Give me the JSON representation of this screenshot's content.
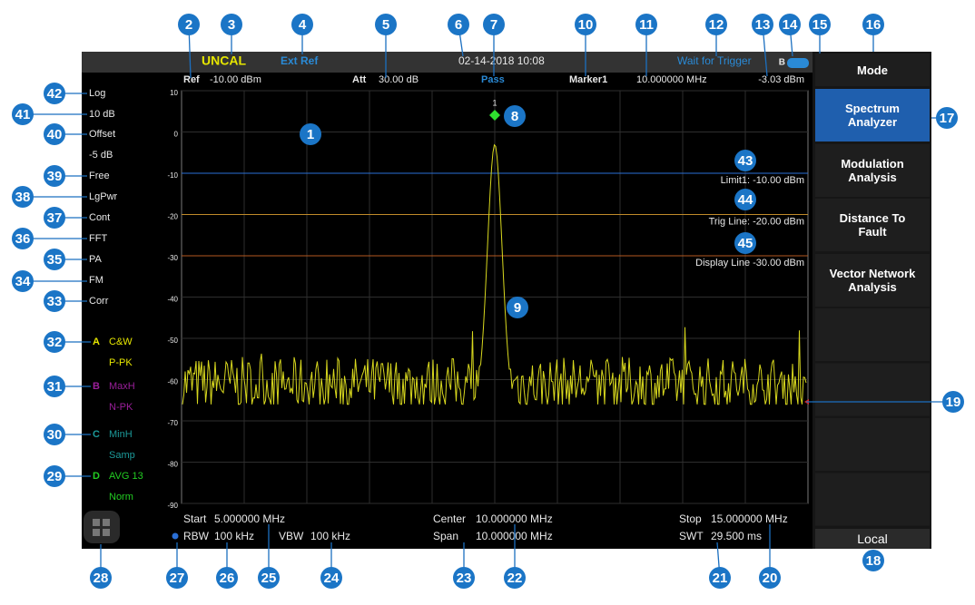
{
  "top_bar": {
    "uncal": "UNCAL",
    "ext_ref": "Ext Ref",
    "datetime": "02-14-2018 10:08",
    "status": "Wait for Trigger",
    "indicator": "B"
  },
  "header": {
    "ref_label": "Ref",
    "ref_value": "-10.00 dBm",
    "att_label": "Att",
    "att_value": "30.00 dB",
    "pass": "Pass",
    "marker": "Marker1",
    "marker_freq": "10.000000 MHz",
    "marker_level": "-3.03 dBm"
  },
  "left_panel": [
    "Log",
    "10 dB",
    "Offset",
    "-5 dB",
    "Free",
    "LgPwr",
    "Cont",
    "FFT",
    "PA",
    "FM",
    "Corr"
  ],
  "traces": [
    {
      "letter": "A",
      "mode": "C&W",
      "detector": "P-PK",
      "color": "#e6e600"
    },
    {
      "letter": "B",
      "mode": "MaxH",
      "detector": "N-PK",
      "color": "#9a1f9a"
    },
    {
      "letter": "C",
      "mode": "MinH",
      "detector": "Samp",
      "color": "#1c9a9a"
    },
    {
      "letter": "D",
      "mode": "AVG 13",
      "detector": "Norm",
      "color": "#22cc22"
    }
  ],
  "plot": {
    "ylim": [
      -90,
      10
    ],
    "yticks": [
      10,
      0,
      -10,
      -20,
      -30,
      -40,
      -50,
      -60,
      -70,
      -80,
      -90
    ],
    "marker_label": "1",
    "lines": [
      {
        "label": "Limit1: -10.00 dBm",
        "level": -10,
        "color": "#2a6fd6"
      },
      {
        "label": "Trig Line: -20.00 dBm",
        "level": -20,
        "color": "#c08a2a"
      },
      {
        "label": "Display Line -30.00 dBm",
        "level": -30,
        "color": "#b5581f"
      }
    ]
  },
  "bottom": {
    "start_label": "Start",
    "start_value": "5.000000 MHz",
    "center_label": "Center",
    "center_value": "10.000000 MHz",
    "stop_label": "Stop",
    "stop_value": "15.000000 MHz",
    "rbw_label": "RBW",
    "rbw_value": "100 kHz",
    "vbw_label": "VBW",
    "vbw_value": "100 kHz",
    "span_label": "Span",
    "span_value": "10.000000 MHz",
    "swt_label": "SWT",
    "swt_value": "29.500 ms"
  },
  "menu": {
    "mode": "Mode",
    "items": [
      "Spectrum Analyzer",
      "Modulation Analysis",
      "Distance To Fault",
      "Vector Network Analysis"
    ],
    "local": "Local"
  },
  "callouts": [
    "1",
    "2",
    "3",
    "4",
    "5",
    "6",
    "7",
    "8",
    "9",
    "10",
    "11",
    "12",
    "13",
    "14",
    "15",
    "16",
    "17",
    "18",
    "19",
    "20",
    "21",
    "22",
    "23",
    "24",
    "25",
    "26",
    "27",
    "28",
    "29",
    "30",
    "31",
    "32",
    "33",
    "34",
    "35",
    "36",
    "37",
    "38",
    "39",
    "40",
    "41",
    "42",
    "43",
    "44",
    "45"
  ]
}
